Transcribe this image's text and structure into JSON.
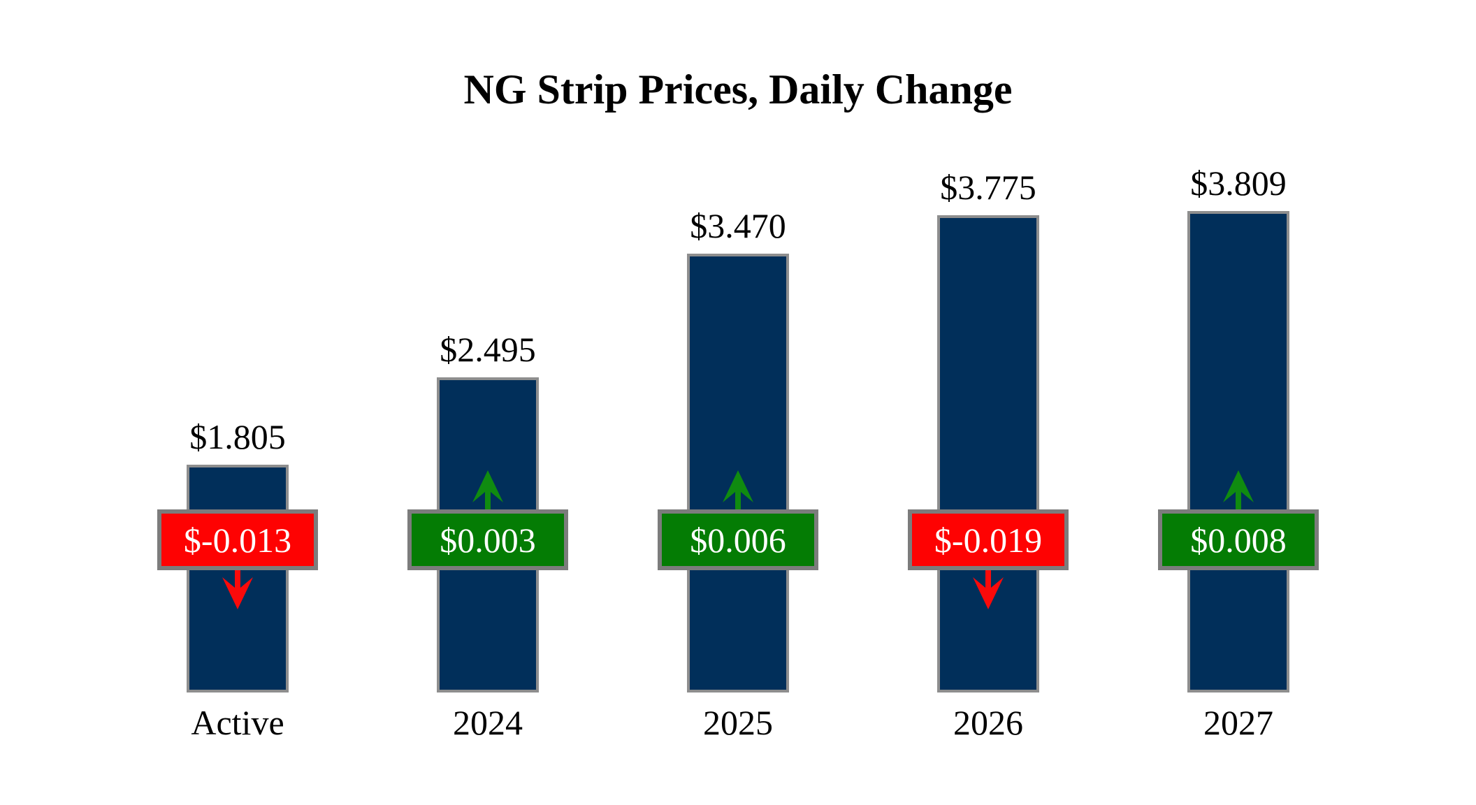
{
  "title": "NG Strip Prices, Daily Change",
  "colors": {
    "background": "#ffffff",
    "bar_fill": "#012f5a",
    "bar_border": "#8e8e8e",
    "badge_border": "#7c7c7c",
    "badge_text": "#ffffff",
    "positive_badge": "#047c04",
    "positive_arrow": "#108b10",
    "negative_badge": "#fe0202",
    "negative_arrow": "#fb0a0a",
    "label_text": "#000000"
  },
  "chart_data": {
    "type": "bar",
    "title": "NG Strip Prices, Daily Change",
    "categories": [
      "Active",
      "2024",
      "2025",
      "2026",
      "2027"
    ],
    "series": [
      {
        "name": "Strip Price ($)",
        "values": [
          1.805,
          2.495,
          3.47,
          3.775,
          3.809
        ]
      },
      {
        "name": "Daily Change ($)",
        "values": [
          -0.013,
          0.003,
          0.006,
          -0.019,
          0.008
        ]
      }
    ],
    "ylim": [
      0,
      3.809
    ],
    "grid": false,
    "legend_position": "none",
    "annotations": "price printed above each bar; daily change shown in colored badge overlaid on bar with directional arrow (green up = gain, red down = loss)",
    "points": [
      {
        "category": "Active",
        "price": 1.805,
        "price_label": "$1.805",
        "change": -0.013,
        "change_label": "$-0.013",
        "direction": "down"
      },
      {
        "category": "2024",
        "price": 2.495,
        "price_label": "$2.495",
        "change": 0.003,
        "change_label": "$0.003",
        "direction": "up"
      },
      {
        "category": "2025",
        "price": 3.47,
        "price_label": "$3.470",
        "change": 0.006,
        "change_label": "$0.006",
        "direction": "up"
      },
      {
        "category": "2026",
        "price": 3.775,
        "price_label": "$3.775",
        "change": -0.019,
        "change_label": "$-0.019",
        "direction": "down"
      },
      {
        "category": "2027",
        "price": 3.809,
        "price_label": "$3.809",
        "change": 0.008,
        "change_label": "$0.008",
        "direction": "up"
      }
    ]
  }
}
